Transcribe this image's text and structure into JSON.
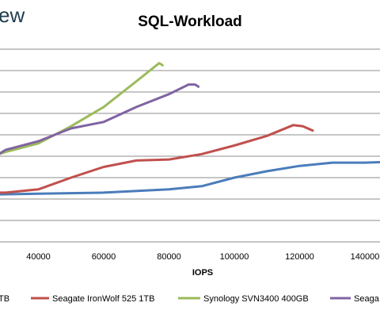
{
  "logo_text": "ew",
  "chart_data": {
    "type": "line",
    "title": "SQL-Workload",
    "xlabel": "IOPS",
    "ylabel": "",
    "xlim": [
      22000,
      150000
    ],
    "ylim": [
      0,
      9
    ],
    "x_ticks": [
      40000,
      60000,
      80000,
      100000,
      120000,
      140000
    ],
    "x_tick_labels": [
      "40000",
      "60000",
      "80000",
      "100000",
      "120000",
      "140000"
    ],
    "y_gridlines": [
      1,
      2,
      3,
      4,
      5,
      6,
      7,
      8,
      9
    ],
    "grid": true,
    "legend_position": "bottom",
    "series": [
      {
        "name": "",
        "legend_label": "TB",
        "color": "#4a7dba",
        "points": [
          [
            20000,
            2.2
          ],
          [
            40000,
            2.25
          ],
          [
            60000,
            2.3
          ],
          [
            80000,
            2.45
          ],
          [
            90000,
            2.6
          ],
          [
            100000,
            3.0
          ],
          [
            110000,
            3.3
          ],
          [
            120000,
            3.55
          ],
          [
            130000,
            3.7
          ],
          [
            140000,
            3.7
          ],
          [
            150000,
            3.75
          ]
        ]
      },
      {
        "name": "Seagate IronWolf 525 1TB",
        "legend_label": "Seagate IronWolf 525 1TB",
        "color": "#c0504d",
        "points": [
          [
            20000,
            2.3
          ],
          [
            30000,
            2.3
          ],
          [
            40000,
            2.45
          ],
          [
            50000,
            3.0
          ],
          [
            60000,
            3.5
          ],
          [
            70000,
            3.8
          ],
          [
            80000,
            3.85
          ],
          [
            90000,
            4.1
          ],
          [
            100000,
            4.5
          ],
          [
            110000,
            4.95
          ],
          [
            118000,
            5.45
          ],
          [
            121000,
            5.4
          ],
          [
            124000,
            5.2
          ]
        ]
      },
      {
        "name": "Synology SVN3400 400GB",
        "legend_label": "Synology SVN3400 400GB",
        "color": "#9bbb59",
        "points": [
          [
            22000,
            3.8
          ],
          [
            30000,
            4.2
          ],
          [
            40000,
            4.6
          ],
          [
            50000,
            5.4
          ],
          [
            60000,
            6.3
          ],
          [
            70000,
            7.5
          ],
          [
            77000,
            8.35
          ],
          [
            78000,
            8.25
          ]
        ]
      },
      {
        "name": "",
        "legend_label": "Seaga",
        "color": "#8064a2",
        "points": [
          [
            22000,
            3.55
          ],
          [
            30000,
            4.3
          ],
          [
            40000,
            4.7
          ],
          [
            50000,
            5.3
          ],
          [
            60000,
            5.6
          ],
          [
            70000,
            6.3
          ],
          [
            80000,
            6.9
          ],
          [
            86000,
            7.35
          ],
          [
            88000,
            7.35
          ],
          [
            89000,
            7.25
          ]
        ]
      }
    ]
  }
}
